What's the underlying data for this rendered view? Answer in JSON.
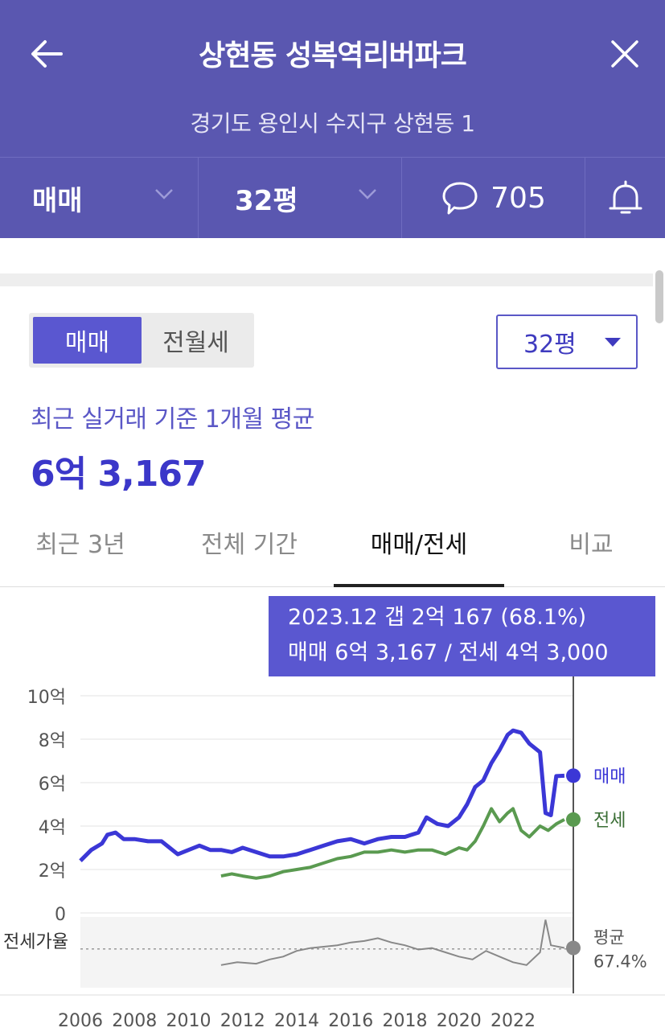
{
  "header": {
    "title": "상현동 성복역리버파크",
    "address": "경기도 용인시 수지구 상현동 1"
  },
  "selector_bar": {
    "deal_type": "매매",
    "area": "32평",
    "comment_count": "705"
  },
  "deal_toggle": {
    "options": [
      "매매",
      "전월세"
    ],
    "selected": "매매"
  },
  "area_select": {
    "value": "32평"
  },
  "summary": {
    "caption": "최근 실거래 기준 1개월 평균",
    "price": "6억 3,167"
  },
  "tabs": [
    {
      "label": "최근 3년",
      "active": false
    },
    {
      "label": "전체 기간",
      "active": false
    },
    {
      "label": "매매/전세",
      "active": true
    },
    {
      "label": "비교",
      "active": false
    }
  ],
  "tooltip": {
    "line1": "2023.12  갭 2억 167 (68.1%)",
    "line2": "매매 6억 3,167 / 전세 4억 3,000"
  },
  "colors": {
    "header_bg": "#5a57b0",
    "accent": "#3b37c9",
    "sale_line": "#3b37d6",
    "jeonse_line": "#5a9a50",
    "ratio_line": "#888888"
  },
  "chart_data": {
    "type": "line",
    "y_ticks": [
      "10억",
      "8억",
      "6억",
      "4억",
      "2억",
      "0"
    ],
    "ylim": [
      0,
      10
    ],
    "x_ticks": [
      "2006",
      "2008",
      "2010",
      "2012",
      "2014",
      "2016",
      "2018",
      "2020",
      "2022"
    ],
    "xlim": [
      2006,
      2024.2
    ],
    "ratio_label": "전세가율",
    "ratio_avg_label": "평균",
    "ratio_avg_value": "67.4%",
    "series": [
      {
        "name": "매매",
        "unit": "억",
        "points": [
          [
            2006.0,
            2.4
          ],
          [
            2006.4,
            2.9
          ],
          [
            2006.8,
            3.2
          ],
          [
            2007.0,
            3.6
          ],
          [
            2007.3,
            3.7
          ],
          [
            2007.6,
            3.4
          ],
          [
            2008.0,
            3.4
          ],
          [
            2008.5,
            3.3
          ],
          [
            2009.0,
            3.3
          ],
          [
            2009.3,
            3.0
          ],
          [
            2009.6,
            2.7
          ],
          [
            2010.0,
            2.9
          ],
          [
            2010.4,
            3.1
          ],
          [
            2010.8,
            2.9
          ],
          [
            2011.2,
            2.9
          ],
          [
            2011.6,
            2.8
          ],
          [
            2012.0,
            3.0
          ],
          [
            2012.5,
            2.8
          ],
          [
            2013.0,
            2.6
          ],
          [
            2013.5,
            2.6
          ],
          [
            2014.0,
            2.7
          ],
          [
            2014.5,
            2.9
          ],
          [
            2015.0,
            3.1
          ],
          [
            2015.5,
            3.3
          ],
          [
            2016.0,
            3.4
          ],
          [
            2016.5,
            3.2
          ],
          [
            2017.0,
            3.4
          ],
          [
            2017.5,
            3.5
          ],
          [
            2018.0,
            3.5
          ],
          [
            2018.5,
            3.7
          ],
          [
            2018.8,
            4.4
          ],
          [
            2019.2,
            4.1
          ],
          [
            2019.6,
            4.0
          ],
          [
            2020.0,
            4.4
          ],
          [
            2020.3,
            5.0
          ],
          [
            2020.6,
            5.8
          ],
          [
            2020.9,
            6.1
          ],
          [
            2021.2,
            6.9
          ],
          [
            2021.5,
            7.5
          ],
          [
            2021.8,
            8.2
          ],
          [
            2022.0,
            8.4
          ],
          [
            2022.3,
            8.3
          ],
          [
            2022.6,
            7.8
          ],
          [
            2023.0,
            7.4
          ],
          [
            2023.2,
            4.6
          ],
          [
            2023.4,
            4.5
          ],
          [
            2023.6,
            6.3
          ],
          [
            2023.9,
            6.32
          ]
        ]
      },
      {
        "name": "전세",
        "unit": "억",
        "points": [
          [
            2011.2,
            1.7
          ],
          [
            2011.6,
            1.8
          ],
          [
            2012.0,
            1.7
          ],
          [
            2012.5,
            1.6
          ],
          [
            2013.0,
            1.7
          ],
          [
            2013.5,
            1.9
          ],
          [
            2014.0,
            2.0
          ],
          [
            2014.5,
            2.1
          ],
          [
            2015.0,
            2.3
          ],
          [
            2015.5,
            2.5
          ],
          [
            2016.0,
            2.6
          ],
          [
            2016.5,
            2.8
          ],
          [
            2017.0,
            2.8
          ],
          [
            2017.5,
            2.9
          ],
          [
            2018.0,
            2.8
          ],
          [
            2018.5,
            2.9
          ],
          [
            2019.0,
            2.9
          ],
          [
            2019.5,
            2.7
          ],
          [
            2020.0,
            3.0
          ],
          [
            2020.3,
            2.9
          ],
          [
            2020.6,
            3.3
          ],
          [
            2020.9,
            4.0
          ],
          [
            2021.2,
            4.8
          ],
          [
            2021.5,
            4.2
          ],
          [
            2021.8,
            4.6
          ],
          [
            2022.0,
            4.8
          ],
          [
            2022.3,
            3.8
          ],
          [
            2022.6,
            3.5
          ],
          [
            2023.0,
            4.0
          ],
          [
            2023.3,
            3.8
          ],
          [
            2023.6,
            4.1
          ],
          [
            2023.9,
            4.3
          ]
        ]
      },
      {
        "name": "전세가율",
        "unit": "%",
        "points": [
          [
            2011.2,
            56
          ],
          [
            2011.8,
            58
          ],
          [
            2012.5,
            57
          ],
          [
            2013.0,
            60
          ],
          [
            2013.5,
            62
          ],
          [
            2014.0,
            66
          ],
          [
            2014.5,
            68
          ],
          [
            2015.0,
            69
          ],
          [
            2015.5,
            70
          ],
          [
            2016.0,
            72
          ],
          [
            2016.5,
            73
          ],
          [
            2017.0,
            75
          ],
          [
            2017.5,
            72
          ],
          [
            2018.0,
            70
          ],
          [
            2018.5,
            67
          ],
          [
            2019.0,
            68
          ],
          [
            2019.5,
            65
          ],
          [
            2020.0,
            62
          ],
          [
            2020.5,
            60
          ],
          [
            2021.0,
            66
          ],
          [
            2021.5,
            62
          ],
          [
            2022.0,
            58
          ],
          [
            2022.5,
            56
          ],
          [
            2023.0,
            65
          ],
          [
            2023.2,
            88
          ],
          [
            2023.4,
            70
          ],
          [
            2023.9,
            68.1
          ]
        ]
      }
    ]
  }
}
